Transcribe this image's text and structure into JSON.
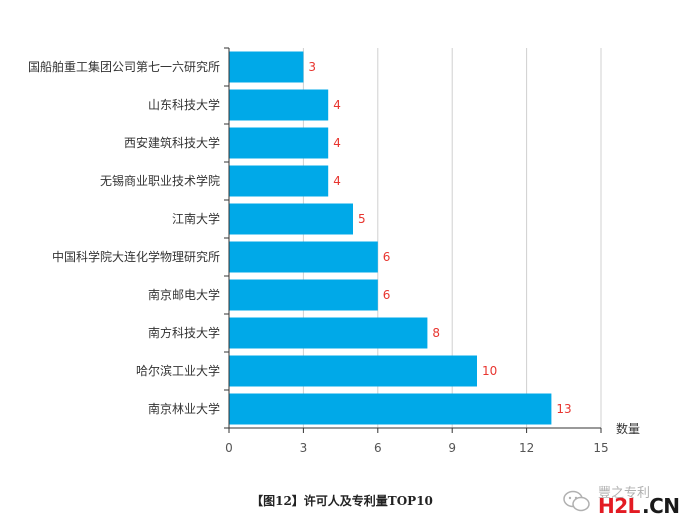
{
  "chart_data": {
    "type": "bar",
    "orientation": "horizontal",
    "categories": [
      "国船舶重工集团公司第七一六研究所",
      "山东科技大学",
      "西安建筑科技大学",
      "无锡商业职业技术学院",
      "江南大学",
      "中国科学院大连化学物理研究所",
      "南京邮电大学",
      "南方科技大学",
      "哈尔滨工业大学",
      "南京林业大学"
    ],
    "values": [
      3,
      4,
      4,
      4,
      5,
      6,
      6,
      8,
      10,
      13
    ],
    "xlabel": "数量",
    "ylabel": "",
    "xlim": [
      0,
      15
    ],
    "xticks": [
      "0",
      "3",
      "6",
      "9",
      "12",
      "15"
    ],
    "grid": "vertical",
    "bar_color": "#00a9e8",
    "label_color": "#e8352f"
  },
  "caption": "【图12】许可人及专利量TOP10",
  "watermark": {
    "top_text": "豐之专利",
    "brand_red": "H2L",
    "brand_dark": ".CN"
  }
}
